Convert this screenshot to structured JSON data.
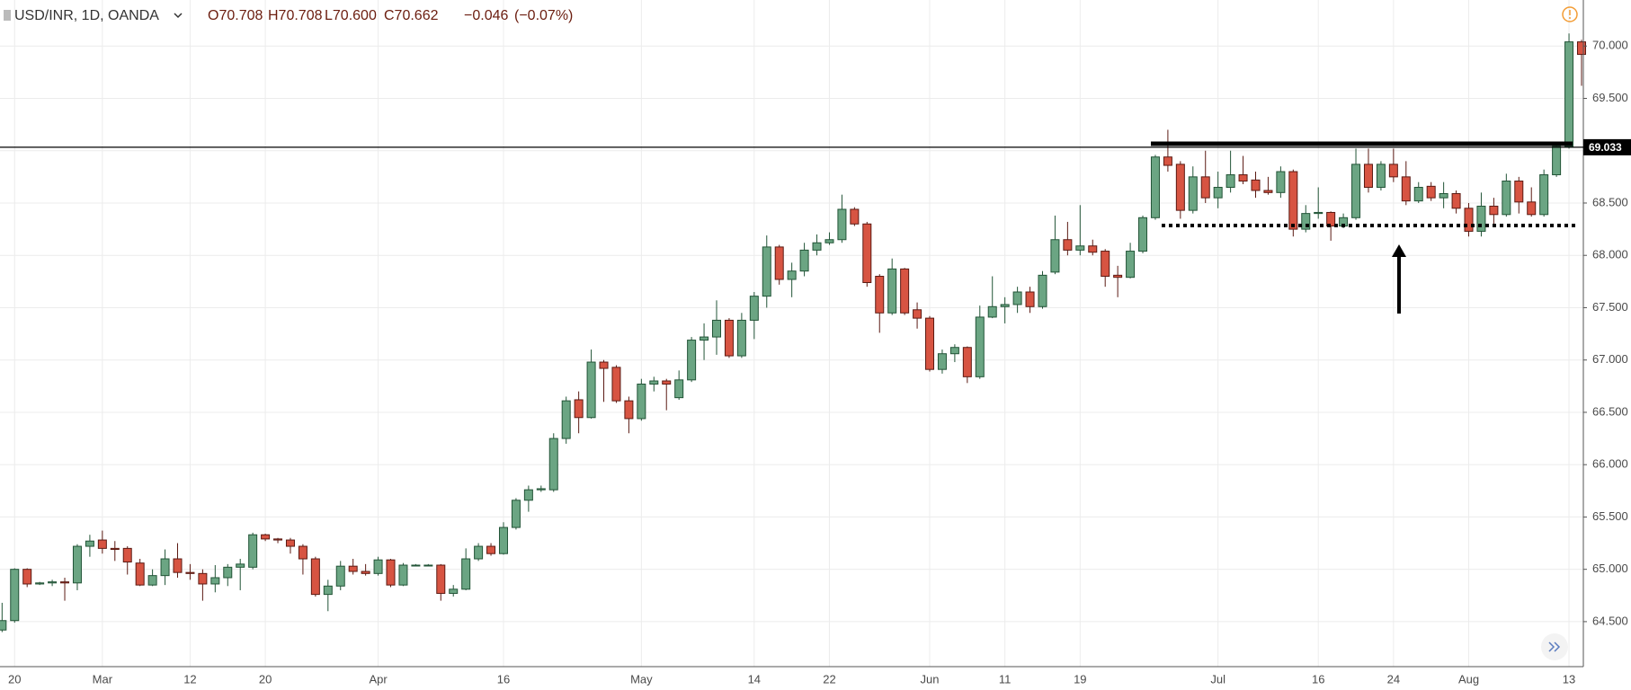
{
  "chart_data": {
    "type": "candlestick",
    "title": "USD/INR, 1D, OANDA",
    "ohlc_legend": [
      "O70.708",
      "H70.708",
      "L70.600",
      "C70.662",
      "−0.046",
      "(−0.07%)"
    ],
    "up_color": "#6ba583",
    "down_color": "#d75442",
    "price_line": 69.033,
    "ylim": [
      64.07,
      70.44
    ],
    "yticks": [
      {
        "value": 64.5,
        "label": "64.500"
      },
      {
        "value": 65,
        "label": "65.000"
      },
      {
        "value": 65.5,
        "label": "65.500"
      },
      {
        "value": 66,
        "label": "66.000"
      },
      {
        "value": 66.5,
        "label": "66.500"
      },
      {
        "value": 67,
        "label": "67.000"
      },
      {
        "value": 67.5,
        "label": "67.500"
      },
      {
        "value": 68,
        "label": "68.000"
      },
      {
        "value": 68.5,
        "label": "68.500"
      },
      {
        "value": 69,
        "label": "69.000"
      },
      {
        "value": 69.5,
        "label": "69.500"
      },
      {
        "value": 70,
        "label": "70.000"
      }
    ],
    "grid": true,
    "categories": [
      null,
      "20",
      null,
      null,
      null,
      null,
      null,
      null,
      "Mar",
      null,
      null,
      null,
      null,
      null,
      null,
      "12",
      null,
      null,
      null,
      null,
      null,
      "20",
      null,
      null,
      null,
      null,
      null,
      null,
      null,
      null,
      "Apr",
      null,
      null,
      null,
      null,
      null,
      null,
      null,
      null,
      null,
      "16",
      null,
      null,
      null,
      null,
      null,
      null,
      null,
      null,
      null,
      null,
      "May",
      null,
      null,
      null,
      null,
      null,
      null,
      null,
      null,
      "14",
      null,
      null,
      null,
      null,
      null,
      "22",
      null,
      null,
      null,
      null,
      null,
      null,
      null,
      "Jun",
      null,
      null,
      null,
      null,
      null,
      "11",
      null,
      null,
      null,
      null,
      null,
      "19",
      null,
      null,
      null,
      null,
      null,
      null,
      null,
      null,
      null,
      null,
      "Jul",
      null,
      null,
      null,
      null,
      null,
      null,
      null,
      "16",
      null,
      null,
      null,
      null,
      null,
      "24",
      null,
      null,
      null,
      null,
      null,
      "Aug",
      null,
      null,
      null,
      null,
      null,
      null,
      null,
      "13",
      null
    ],
    "open": [
      64.42,
      64.51,
      65.0,
      64.86,
      64.87,
      64.88,
      64.87,
      65.22,
      65.28,
      65.2,
      65.2,
      65.06,
      64.85,
      64.94,
      65.1,
      64.97,
      64.96,
      64.86,
      64.92,
      65.02,
      65.02,
      65.33,
      65.29,
      65.28,
      65.22,
      65.1,
      64.76,
      64.84,
      65.03,
      64.98,
      64.96,
      65.09,
      64.85,
      65.04,
      65.04,
      65.04,
      64.77,
      64.81,
      65.1,
      65.22,
      65.15,
      65.4,
      65.66,
      65.76,
      65.76,
      66.25,
      66.62,
      66.45,
      66.98,
      66.93,
      66.61,
      66.44,
      66.77,
      66.8,
      66.64,
      66.81,
      67.19,
      67.22,
      67.38,
      67.04,
      67.38,
      67.61,
      68.08,
      67.77,
      67.85,
      68.05,
      68.12,
      68.15,
      68.44,
      68.3,
      67.8,
      67.45,
      67.87,
      67.48,
      67.4,
      66.91,
      67.06,
      67.12,
      66.84,
      67.41,
      67.51,
      67.53,
      67.65,
      67.51,
      67.84,
      68.15,
      68.05,
      68.09,
      68.04,
      67.81,
      67.79,
      68.04,
      68.36,
      68.94,
      68.87,
      68.43,
      68.75,
      68.55,
      68.65,
      68.77,
      68.72,
      68.62,
      68.6,
      68.8,
      68.25,
      68.4,
      68.41,
      68.28,
      68.36,
      68.87,
      68.65,
      68.87,
      68.75,
      68.52,
      68.66,
      68.55,
      68.59,
      68.45,
      68.23,
      68.47,
      68.39,
      68.71,
      68.51,
      68.39,
      68.77,
      69.04,
      70.04
    ],
    "high": [
      64.68,
      65.01,
      65.01,
      64.88,
      64.9,
      64.92,
      65.24,
      65.33,
      65.37,
      65.27,
      65.22,
      65.1,
      65.0,
      65.19,
      65.25,
      65.05,
      65.0,
      65.04,
      65.05,
      65.1,
      65.35,
      65.34,
      65.3,
      65.3,
      65.24,
      65.12,
      64.9,
      65.08,
      65.1,
      65.05,
      65.12,
      65.1,
      65.06,
      65.05,
      65.05,
      65.05,
      64.85,
      65.2,
      65.25,
      65.25,
      65.45,
      65.68,
      65.8,
      65.8,
      66.3,
      66.65,
      66.7,
      67.1,
      67.0,
      66.95,
      66.65,
      66.82,
      66.84,
      66.82,
      66.9,
      67.22,
      67.35,
      67.57,
      67.4,
      67.45,
      67.65,
      68.19,
      68.1,
      67.93,
      68.12,
      68.2,
      68.22,
      68.58,
      68.46,
      68.32,
      67.82,
      67.97,
      67.88,
      67.55,
      67.42,
      67.1,
      67.15,
      67.13,
      67.52,
      67.8,
      67.6,
      67.7,
      67.7,
      67.85,
      68.38,
      68.32,
      68.48,
      68.15,
      68.06,
      67.9,
      68.12,
      68.38,
      68.96,
      69.2,
      68.9,
      68.85,
      69.0,
      68.8,
      69.0,
      68.95,
      68.8,
      68.75,
      68.85,
      68.82,
      68.48,
      68.65,
      68.42,
      68.4,
      69.02,
      69.02,
      68.9,
      69.02,
      68.9,
      68.7,
      68.7,
      68.7,
      68.62,
      68.5,
      68.6,
      68.55,
      68.78,
      68.75,
      68.65,
      68.82,
      69.06,
      70.12,
      70.06
    ],
    "low": [
      64.4,
      64.49,
      64.83,
      64.85,
      64.84,
      64.7,
      64.8,
      65.12,
      65.15,
      65.08,
      64.95,
      64.84,
      64.84,
      64.85,
      64.92,
      64.9,
      64.7,
      64.78,
      64.84,
      64.8,
      65.0,
      65.27,
      65.25,
      65.15,
      64.95,
      64.74,
      64.6,
      64.8,
      64.95,
      64.94,
      64.94,
      64.83,
      64.84,
      65.03,
      65.03,
      64.7,
      64.74,
      64.8,
      65.08,
      65.13,
      65.14,
      65.38,
      65.55,
      65.74,
      65.74,
      66.2,
      66.3,
      66.44,
      66.6,
      66.59,
      66.3,
      66.42,
      66.7,
      66.52,
      66.62,
      66.79,
      67.0,
      67.05,
      67.02,
      67.02,
      67.2,
      67.5,
      67.72,
      67.6,
      67.8,
      68.0,
      68.1,
      68.12,
      68.28,
      67.7,
      67.26,
      67.43,
      67.43,
      67.3,
      66.89,
      66.87,
      66.98,
      66.78,
      66.82,
      67.4,
      67.35,
      67.45,
      67.45,
      67.49,
      67.82,
      68.0,
      68.0,
      68.0,
      67.7,
      67.6,
      67.78,
      68.02,
      68.34,
      68.8,
      68.35,
      68.4,
      68.5,
      68.45,
      68.6,
      68.68,
      68.55,
      68.58,
      68.55,
      68.18,
      68.22,
      68.35,
      68.14,
      68.26,
      68.34,
      68.6,
      68.62,
      68.7,
      68.48,
      68.5,
      68.52,
      68.45,
      68.4,
      68.18,
      68.18,
      68.3,
      68.37,
      68.4,
      68.37,
      68.37,
      68.75,
      69.02,
      69.62
    ],
    "close": [
      64.51,
      65.0,
      64.86,
      64.87,
      64.88,
      64.87,
      65.22,
      65.27,
      65.2,
      65.19,
      65.07,
      64.85,
      64.94,
      65.1,
      64.97,
      64.96,
      64.86,
      64.92,
      65.02,
      65.05,
      65.33,
      65.29,
      65.28,
      65.22,
      65.1,
      64.76,
      64.84,
      65.03,
      64.98,
      64.96,
      65.09,
      64.85,
      65.04,
      65.04,
      65.04,
      64.77,
      64.81,
      65.1,
      65.22,
      65.15,
      65.4,
      65.66,
      65.76,
      65.77,
      66.25,
      66.61,
      66.45,
      66.98,
      66.92,
      66.61,
      66.44,
      66.77,
      66.8,
      66.77,
      66.81,
      67.19,
      67.22,
      67.38,
      67.04,
      67.38,
      67.61,
      68.08,
      67.77,
      67.85,
      68.05,
      68.12,
      68.15,
      68.44,
      68.3,
      67.74,
      67.45,
      67.87,
      67.45,
      67.4,
      66.91,
      67.06,
      67.12,
      66.84,
      67.41,
      67.51,
      67.53,
      67.65,
      67.51,
      67.81,
      68.15,
      68.05,
      68.09,
      68.03,
      67.8,
      67.79,
      68.04,
      68.36,
      68.94,
      68.86,
      68.43,
      68.75,
      68.55,
      68.65,
      68.77,
      68.71,
      68.62,
      68.6,
      68.8,
      68.25,
      68.4,
      68.41,
      68.28,
      68.36,
      68.87,
      68.65,
      68.87,
      68.75,
      68.52,
      68.65,
      68.55,
      68.59,
      68.45,
      68.23,
      68.47,
      68.39,
      68.71,
      68.51,
      68.39,
      68.77,
      69.04,
      70.04,
      69.92
    ]
  }
}
